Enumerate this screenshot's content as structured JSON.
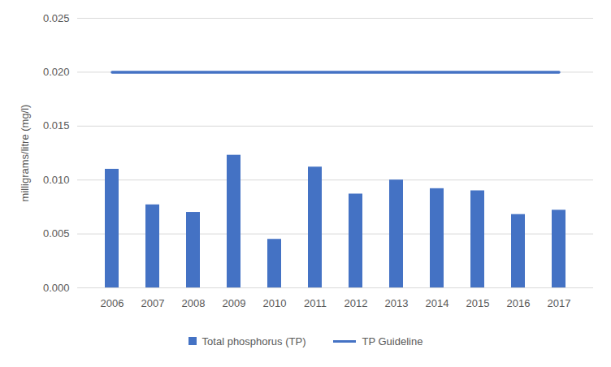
{
  "chart_data": {
    "type": "bar",
    "y_label": "milligrams/litre (mg/l)",
    "categories": [
      "2006",
      "2007",
      "2008",
      "2009",
      "2010",
      "2011",
      "2012",
      "2013",
      "2014",
      "2015",
      "2016",
      "2017"
    ],
    "series": [
      {
        "name": "Total phosphorus (TP)",
        "type": "bar",
        "color": "#4472c4",
        "values": [
          0.011,
          0.0077,
          0.007,
          0.0123,
          0.0045,
          0.0112,
          0.0087,
          0.01,
          0.0092,
          0.009,
          0.0068,
          0.0072
        ]
      },
      {
        "name": "TP Guideline",
        "type": "line",
        "color": "#4472c4",
        "values": [
          0.02,
          0.02,
          0.02,
          0.02,
          0.02,
          0.02,
          0.02,
          0.02,
          0.02,
          0.02,
          0.02,
          0.02
        ]
      }
    ],
    "ylim": [
      0,
      0.025
    ],
    "yticks": [
      {
        "value": 0,
        "label": "0.000"
      },
      0.005,
      {
        "value": 0.01,
        "label": "0.010"
      },
      0.015,
      {
        "value": 0.02,
        "label": "0.020"
      },
      0.025
    ],
    "grid": true,
    "legend": "bottom"
  }
}
